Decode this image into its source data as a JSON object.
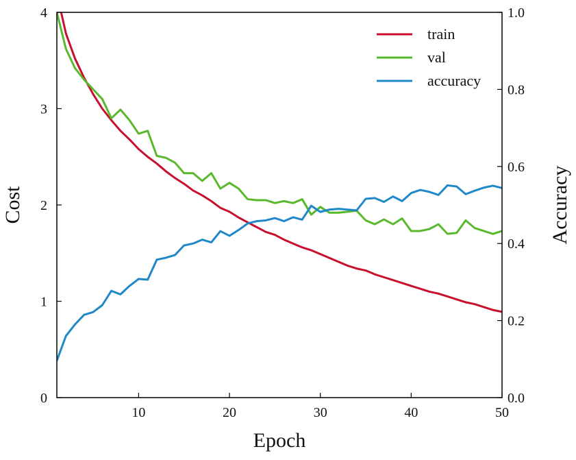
{
  "chart_data": {
    "type": "line",
    "xlabel": "Epoch",
    "ylabel": "Cost",
    "y2label": "Accuracy",
    "xlim": [
      1,
      50
    ],
    "ylim": [
      0,
      4
    ],
    "y2lim": [
      0,
      1
    ],
    "xticks": [
      "10",
      "20",
      "30",
      "40",
      "50"
    ],
    "yticks": [
      "0",
      "1",
      "2",
      "3",
      "4"
    ],
    "y2ticks": [
      "0.0",
      "0.2",
      "0.4",
      "0.6",
      "0.8",
      "1.0"
    ],
    "grid": false,
    "legend": "top-right",
    "x": [
      1,
      2,
      3,
      4,
      5,
      6,
      7,
      8,
      9,
      10,
      11,
      12,
      13,
      14,
      15,
      16,
      17,
      18,
      19,
      20,
      21,
      22,
      23,
      24,
      25,
      26,
      27,
      28,
      29,
      30,
      31,
      32,
      33,
      34,
      35,
      36,
      37,
      38,
      39,
      40,
      41,
      42,
      43,
      44,
      45,
      46,
      47,
      48,
      49,
      50
    ],
    "series": [
      {
        "name": "train",
        "axis": "left",
        "color": "#c8102e",
        "values": [
          4.2,
          3.78,
          3.52,
          3.32,
          3.15,
          3.0,
          2.88,
          2.77,
          2.68,
          2.58,
          2.5,
          2.43,
          2.35,
          2.28,
          2.22,
          2.15,
          2.1,
          2.04,
          1.97,
          1.93,
          1.87,
          1.82,
          1.77,
          1.72,
          1.69,
          1.64,
          1.6,
          1.56,
          1.53,
          1.49,
          1.45,
          1.41,
          1.37,
          1.34,
          1.32,
          1.28,
          1.25,
          1.22,
          1.19,
          1.16,
          1.13,
          1.1,
          1.08,
          1.05,
          1.02,
          0.99,
          0.97,
          0.94,
          0.91,
          0.89
        ]
      },
      {
        "name": "val",
        "axis": "left",
        "color": "#5ab82d",
        "values": [
          4.0,
          3.62,
          3.42,
          3.3,
          3.2,
          3.1,
          2.9,
          2.99,
          2.88,
          2.74,
          2.77,
          2.51,
          2.49,
          2.44,
          2.33,
          2.33,
          2.25,
          2.33,
          2.17,
          2.23,
          2.17,
          2.06,
          2.05,
          2.05,
          2.02,
          2.04,
          2.02,
          2.06,
          1.9,
          1.98,
          1.92,
          1.92,
          1.93,
          1.94,
          1.84,
          1.8,
          1.85,
          1.8,
          1.86,
          1.73,
          1.73,
          1.75,
          1.8,
          1.7,
          1.71,
          1.84,
          1.76,
          1.73,
          1.7,
          1.73
        ]
      },
      {
        "name": "accuracy",
        "axis": "right",
        "color": "#1f88c9",
        "values": [
          0.096,
          0.16,
          0.19,
          0.215,
          0.222,
          0.24,
          0.277,
          0.268,
          0.29,
          0.308,
          0.306,
          0.358,
          0.363,
          0.37,
          0.395,
          0.4,
          0.41,
          0.403,
          0.432,
          0.42,
          0.435,
          0.452,
          0.458,
          0.46,
          0.466,
          0.458,
          0.468,
          0.462,
          0.498,
          0.482,
          0.488,
          0.49,
          0.488,
          0.486,
          0.516,
          0.518,
          0.508,
          0.522,
          0.51,
          0.531,
          0.539,
          0.534,
          0.526,
          0.551,
          0.548,
          0.528,
          0.537,
          0.545,
          0.55,
          0.544
        ]
      }
    ]
  }
}
